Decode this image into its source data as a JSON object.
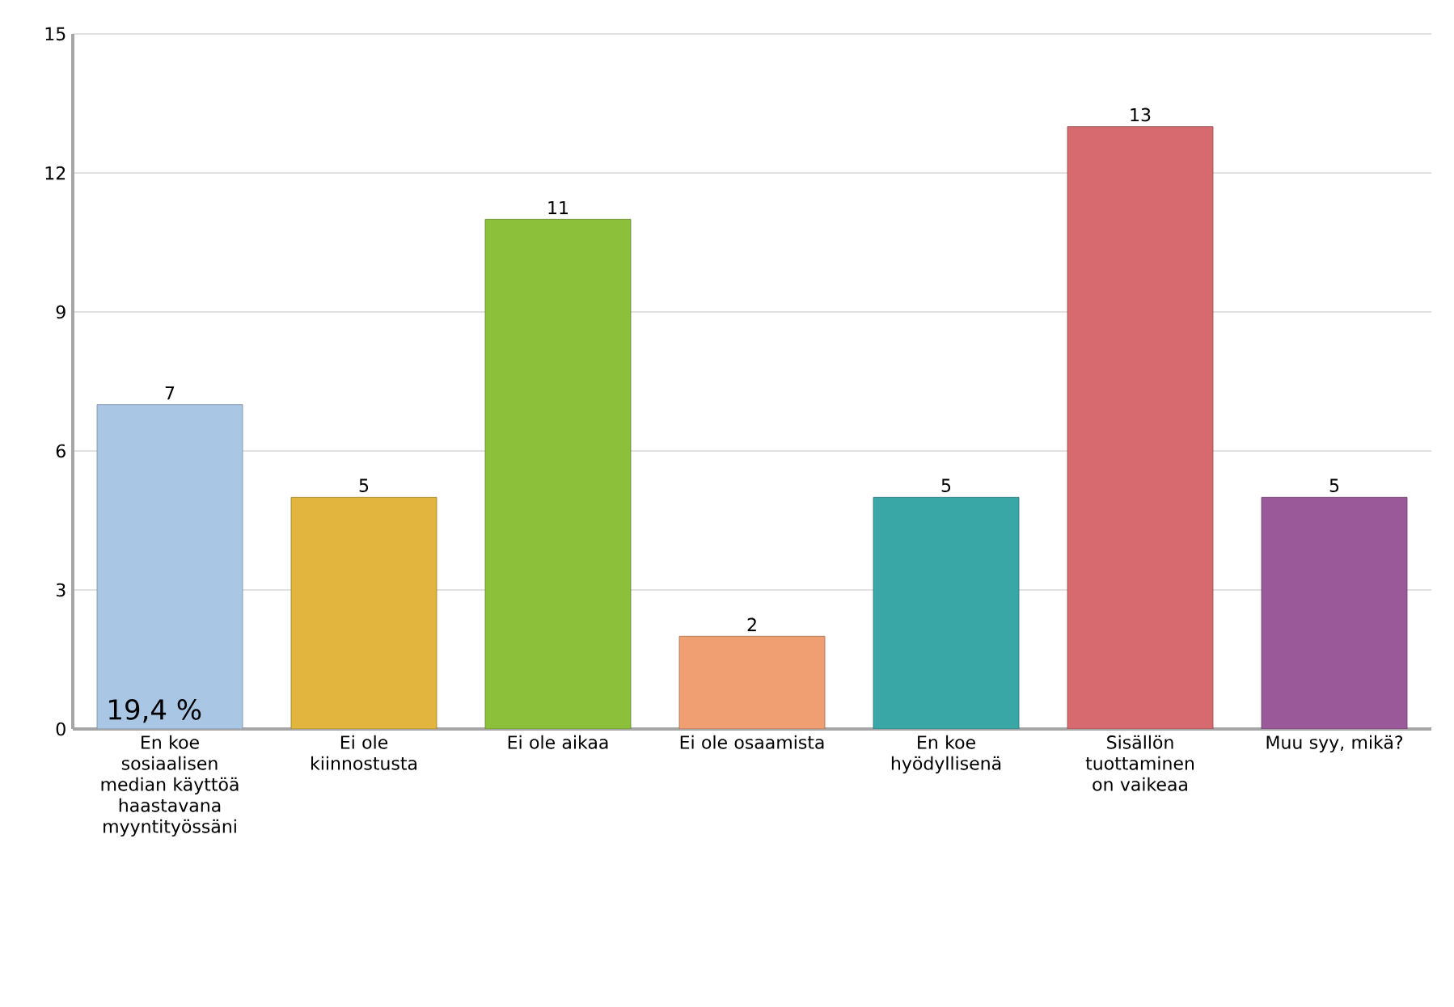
{
  "chart_data": {
    "type": "bar",
    "categories": [
      "En koe sosiaalisen median käyttöä haastavana myyntityössäni",
      "Ei ole kiinnostusta",
      "Ei ole aikaa",
      "Ei ole osaamista",
      "En koe hyödyllisenä",
      "Sisällön tuottaminen on vaikeaa",
      "Muu syy, mikä?"
    ],
    "values": [
      7,
      5,
      11,
      2,
      5,
      13,
      5
    ],
    "colors": [
      "#a9c6e4",
      "#e2b53e",
      "#8cbf3a",
      "#ef9f72",
      "#3aa7a7",
      "#d66a6e",
      "#9a5a9a"
    ],
    "ylim": [
      0,
      15
    ],
    "yticks": [
      0,
      3,
      6,
      9,
      12,
      15
    ],
    "grid": "y",
    "data_labels": true,
    "annotations": [
      "19,4 %"
    ]
  }
}
